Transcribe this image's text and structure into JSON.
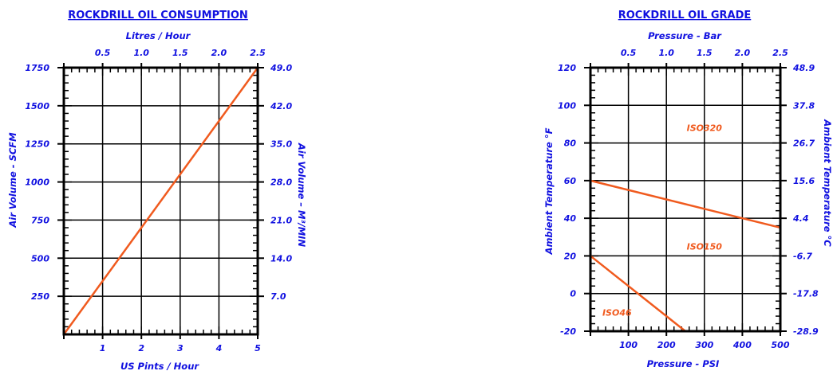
{
  "chart_data": [
    {
      "type": "line",
      "title": "ROCKDRILL OIL CONSUMPTION",
      "xlabel": "US Pints / Hour",
      "x2label": "Litres / Hour",
      "ylabel": "Air Volume - SCFM",
      "y2label": "Air Volume – M³/MIN",
      "xlim": [
        0,
        5
      ],
      "ylim": [
        0,
        1750
      ],
      "x_ticks": [
        "1",
        "2",
        "3",
        "4",
        "5"
      ],
      "x2_ticks": [
        "0.5",
        "1.0",
        "1.5",
        "2.0",
        "2.5"
      ],
      "y_ticks": [
        "250",
        "500",
        "750",
        "1000",
        "1250",
        "1500",
        "1750"
      ],
      "y2_ticks": [
        "7.0",
        "14.0",
        "21.0",
        "28.0",
        "35.0",
        "42.0",
        "49.0"
      ],
      "grid": true,
      "series": [
        {
          "x": [
            0,
            5
          ],
          "y": [
            0,
            1750
          ]
        }
      ]
    },
    {
      "type": "line",
      "title": "ROCKDRILL OIL GRADE",
      "xlabel": "Pressure - PSI",
      "x2label": "Pressure - Bar",
      "ylabel": "Ambient Temperature °F",
      "y2label": "Ambient Temperature °C",
      "xlim": [
        0,
        500
      ],
      "ylim": [
        -20,
        120
      ],
      "x_ticks": [
        "100",
        "200",
        "300",
        "400",
        "500"
      ],
      "x2_ticks": [
        "0.5",
        "1.0",
        "1.5",
        "2.0",
        "2.5"
      ],
      "y_ticks": [
        "-20",
        "0",
        "20",
        "40",
        "60",
        "80",
        "100",
        "120"
      ],
      "y2_ticks": [
        "-28.9",
        "-17.8",
        "-6.7",
        "4.4",
        "15.6",
        "26.7",
        "37.8",
        "48.9"
      ],
      "grid": true,
      "series": [
        {
          "x": [
            0,
            500
          ],
          "y": [
            60,
            35
          ]
        },
        {
          "x": [
            0,
            250
          ],
          "y": [
            20,
            -20
          ]
        }
      ],
      "annotations": [
        {
          "text": "ISO320",
          "x": 300,
          "y": 88
        },
        {
          "text": "ISO150",
          "x": 300,
          "y": 25
        },
        {
          "text": "ISO46",
          "x": 70,
          "y": -10
        }
      ]
    }
  ]
}
